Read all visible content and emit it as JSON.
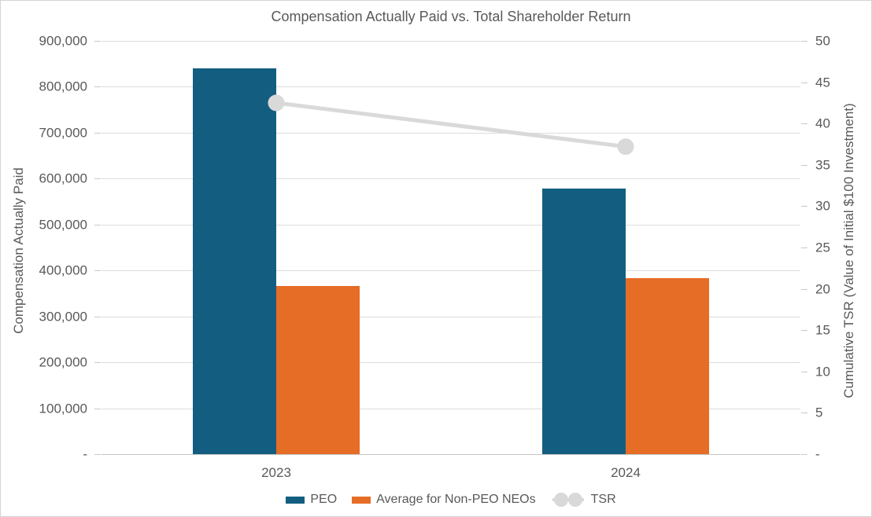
{
  "chart_data": {
    "type": "combo-bar-line",
    "title": "Compensation Actually Paid vs. Total Shareholder Return",
    "categories": [
      "2023",
      "2024"
    ],
    "series": [
      {
        "name": "PEO",
        "type": "bar",
        "axis": "left",
        "color": "#135e80",
        "values": [
          840000,
          578000
        ]
      },
      {
        "name": "Average for Non-PEO NEOs",
        "type": "bar",
        "axis": "left",
        "color": "#e66d26",
        "values": [
          366000,
          383000
        ]
      },
      {
        "name": "TSR",
        "type": "line",
        "axis": "right",
        "color": "#d9d9d9",
        "values": [
          42.5,
          37.2
        ]
      }
    ],
    "left_axis": {
      "label": "Compensation Actually Paid",
      "min": 0,
      "max": 900000,
      "step": 100000,
      "tick_labels_top_to_bottom": [
        "900,000",
        "800,000",
        "700,000",
        "600,000",
        "500,000",
        "400,000",
        "300,000",
        "200,000",
        "100,000",
        "-"
      ]
    },
    "right_axis": {
      "label": "Cumulative TSR (Value of Initial $100 Investment)",
      "min": 0,
      "max": 50,
      "step": 5,
      "tick_labels_top_to_bottom": [
        "50",
        "45",
        "40",
        "35",
        "30",
        "25",
        "20",
        "15",
        "10",
        "5",
        "-"
      ]
    },
    "legend": {
      "position": "bottom",
      "entries": [
        "PEO",
        "Average for Non-PEO NEOs",
        "TSR"
      ]
    },
    "grid": true,
    "colors": {
      "text": "#595959",
      "gridline": "#dcdcdc",
      "axis_line": "#c6c6c6",
      "tsr_line": "#d9d9d9"
    }
  }
}
